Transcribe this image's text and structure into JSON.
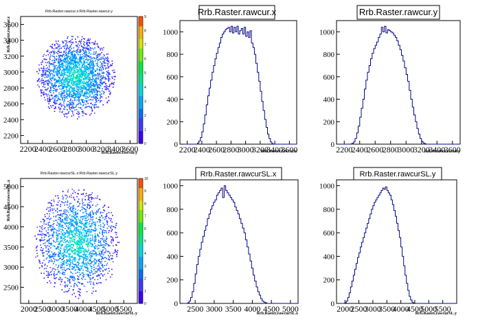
{
  "chart_data": [
    {
      "type": "heatmap",
      "title": "Rrb.Raster.rawcur.x:Rrb.Raster.rawcur.y",
      "xlabel": "Rrb.Raster.rawcur.y",
      "ylabel": "Rrb.Raster.rawcur.x",
      "xlim": [
        2100,
        3700
      ],
      "ylim": [
        2100,
        3700
      ],
      "x_ticks": [
        "2200",
        "2400",
        "2600",
        "2800",
        "3000",
        "3200",
        "3400",
        "3600"
      ],
      "y_ticks": [
        "2200",
        "2400",
        "2600",
        "2800",
        "3000",
        "3200",
        "3400",
        "3600"
      ],
      "center": [
        2850,
        2940
      ],
      "spread": [
        260,
        250
      ],
      "palette_max": 9,
      "palette_ticks": [
        "0",
        "1",
        "2",
        "3",
        "4",
        "5",
        "6",
        "7",
        "8",
        "9"
      ]
    },
    {
      "type": "bar",
      "title": "Rrb.Raster.rawcur.x",
      "xlabel": "Rrb.Raster.rawcur.x",
      "xlim": [
        2100,
        3700
      ],
      "ylim": [
        0,
        1100
      ],
      "x_ticks": [
        "2200",
        "2400",
        "2600",
        "2800",
        "3000",
        "3200",
        "3400",
        "3600"
      ],
      "y_ticks": [
        "0",
        "200",
        "400",
        "600",
        "800",
        "1000"
      ],
      "bin_edges_start": 2100,
      "bin_width": 20,
      "values": [
        0,
        0,
        0,
        0,
        0,
        0,
        0,
        0,
        0,
        0,
        0,
        0,
        10,
        28,
        58,
        110,
        180,
        260,
        350,
        430,
        500,
        570,
        640,
        700,
        760,
        810,
        860,
        900,
        950,
        980,
        1000,
        1020,
        1030,
        1040,
        1000,
        1050,
        990,
        1040,
        1000,
        1050,
        980,
        1010,
        1030,
        980,
        1040,
        960,
        1000,
        950,
        1010,
        900,
        860,
        800,
        720,
        640,
        560,
        470,
        380,
        300,
        220,
        150,
        90,
        50,
        20,
        5,
        0,
        0,
        0,
        0,
        0,
        0,
        0,
        0,
        0,
        0,
        0,
        0,
        0,
        0,
        0,
        0
      ]
    },
    {
      "type": "bar",
      "title": "Rrb.Raster.rawcur.y",
      "xlabel": "Rrb.Raster.rawcur.y",
      "xlim": [
        2100,
        3700
      ],
      "ylim": [
        0,
        1100
      ],
      "x_ticks": [
        "2200",
        "2400",
        "2600",
        "2800",
        "3000",
        "3200",
        "3400",
        "3600"
      ],
      "y_ticks": [
        "0",
        "200",
        "400",
        "600",
        "800",
        "1000"
      ],
      "bin_edges_start": 2100,
      "bin_width": 20,
      "values": [
        0,
        0,
        0,
        0,
        0,
        0,
        0,
        0,
        0,
        2,
        8,
        20,
        50,
        100,
        160,
        240,
        320,
        400,
        490,
        570,
        640,
        700,
        760,
        810,
        850,
        880,
        910,
        950,
        980,
        1040,
        1000,
        1050,
        990,
        1020,
        1010,
        1000,
        990,
        970,
        950,
        920,
        880,
        840,
        790,
        740,
        680,
        620,
        560,
        480,
        400,
        330,
        260,
        200,
        140,
        90,
        50,
        25,
        10,
        3,
        0,
        0,
        0,
        0,
        0,
        0,
        0,
        0,
        0,
        0,
        0,
        0,
        0,
        0,
        0,
        0,
        0,
        0,
        0,
        0,
        0,
        0
      ]
    },
    {
      "type": "heatmap",
      "title": "Rrb.Raster.rawcurSL.x:Rrb.Raster.rawcurSL.y",
      "xlabel": "Rrb.Raster.rawcurSL.y",
      "ylabel": "Rrb.Raster.rawcurSL.x",
      "xlim": [
        1700,
        6000
      ],
      "ylim": [
        2100,
        5200
      ],
      "x_ticks": [
        "2000",
        "2500",
        "3000",
        "3500",
        "4000",
        "4500",
        "5000",
        "5500"
      ],
      "y_ticks": [
        "2500",
        "3000",
        "3500",
        "4000",
        "4500",
        "5000"
      ],
      "center": [
        3750,
        3600
      ],
      "spread": [
        750,
        650
      ],
      "palette_max": 10,
      "palette_ticks": [
        "0",
        "1",
        "2",
        "3",
        "4",
        "5",
        "6",
        "7",
        "8",
        "9",
        "10"
      ]
    },
    {
      "type": "bar",
      "title": "Rrb.Raster.rawcurSL.x",
      "xlabel": "Rrb.Raster.rawcurSL.x",
      "xlim": [
        2100,
        5200
      ],
      "ylim": [
        0,
        1050
      ],
      "x_ticks": [
        "2500",
        "3000",
        "3500",
        "4000",
        "4500",
        "5000"
      ],
      "y_ticks": [
        "0",
        "200",
        "400",
        "600",
        "800",
        "1000"
      ],
      "bin_edges_start": 2100,
      "bin_width": 40,
      "values": [
        0,
        0,
        0,
        0,
        0,
        5,
        20,
        50,
        100,
        170,
        250,
        330,
        400,
        460,
        520,
        570,
        620,
        660,
        720,
        760,
        800,
        830,
        860,
        880,
        920,
        940,
        960,
        980,
        900,
        1000,
        960,
        940,
        920,
        900,
        880,
        860,
        820,
        790,
        760,
        720,
        680,
        640,
        600,
        540,
        480,
        420,
        360,
        300,
        240,
        190,
        140,
        100,
        70,
        40,
        20,
        10,
        5,
        0,
        0,
        0,
        0,
        0,
        0,
        0,
        0,
        0,
        0,
        0,
        0,
        0,
        0,
        0,
        0,
        0,
        0,
        0,
        0,
        0
      ]
    },
    {
      "type": "bar",
      "title": "Rrb.Raster.rawcurSL.y",
      "xlabel": "Rrb.Raster.rawcurSL.y",
      "xlim": [
        1700,
        6000
      ],
      "ylim": [
        0,
        1050
      ],
      "x_ticks": [
        "2000",
        "2500",
        "3000",
        "3500",
        "4000",
        "4500",
        "5000",
        "5500"
      ],
      "y_ticks": [
        "0",
        "200",
        "400",
        "600",
        "800",
        "1000"
      ],
      "bin_edges_start": 1700,
      "bin_width": 50,
      "values": [
        0,
        0,
        0,
        0,
        0,
        0,
        5,
        20,
        50,
        90,
        140,
        190,
        240,
        290,
        340,
        390,
        430,
        480,
        520,
        560,
        600,
        640,
        680,
        720,
        760,
        800,
        830,
        860,
        880,
        900,
        920,
        940,
        960,
        980,
        970,
        990,
        960,
        940,
        920,
        880,
        840,
        790,
        740,
        680,
        620,
        560,
        480,
        400,
        320,
        240,
        170,
        110,
        60,
        30,
        10,
        3,
        0,
        0,
        0,
        0,
        0,
        0,
        0,
        0,
        0,
        0,
        0,
        0,
        0,
        0,
        0,
        0,
        0,
        0,
        0,
        0,
        0,
        0,
        0,
        0,
        0,
        0,
        0,
        0,
        0,
        0
      ]
    }
  ]
}
